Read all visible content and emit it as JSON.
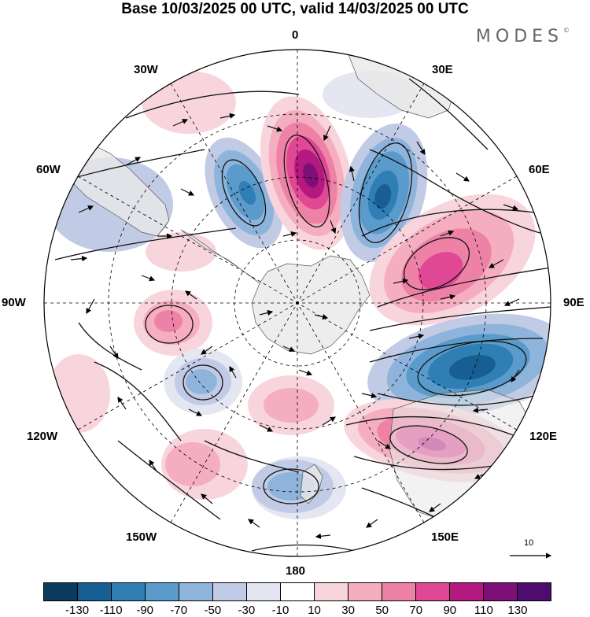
{
  "title": "Base 10/03/2025 00 UTC, valid 14/03/2025 00 UTC",
  "brand": "MODES",
  "brand_mark": "©",
  "longitude_labels": {
    "top": "0",
    "bottom": "180",
    "left": "90W",
    "right": "90E",
    "nw1": "30W",
    "nw2": "60W",
    "ne1": "30E",
    "ne2": "60E",
    "sw1": "120W",
    "sw2": "150W",
    "se1": "120E",
    "se2": "150E"
  },
  "wind_scale": {
    "value": "10"
  },
  "colorbar": {
    "colors": [
      "#0b3c5d",
      "#175f92",
      "#2f7fb5",
      "#5a9bcb",
      "#8fb4dc",
      "#c2cbe5",
      "#e4e6f2",
      "#ffffff",
      "#f8d5dd",
      "#f4aebf",
      "#ee82a6",
      "#e04896",
      "#b3197f",
      "#7f0f78",
      "#4d0c6e"
    ],
    "tick_labels": [
      "-130",
      "-110",
      "-90",
      "-70",
      "-50",
      "-30",
      "-10",
      "10",
      "30",
      "50",
      "70",
      "90",
      "110",
      "130"
    ]
  },
  "anomaly_colors": {
    "pos_weak": "#f8d5dd",
    "pos_light": "#f4aebf",
    "pos_mid": "#ee82a6",
    "pos_strong": "#e04896",
    "pos_very_strong": "#b3197f",
    "pos_max": "#7f0f78",
    "neg_weak": "#e4e6f2",
    "neg_light": "#c2cbe5",
    "neg_mid": "#8fb4dc",
    "neg_strong": "#5a9bcb",
    "neg_very_strong": "#2f7fb5",
    "neg_max": "#175f92",
    "land": "#e8e8e8"
  }
}
